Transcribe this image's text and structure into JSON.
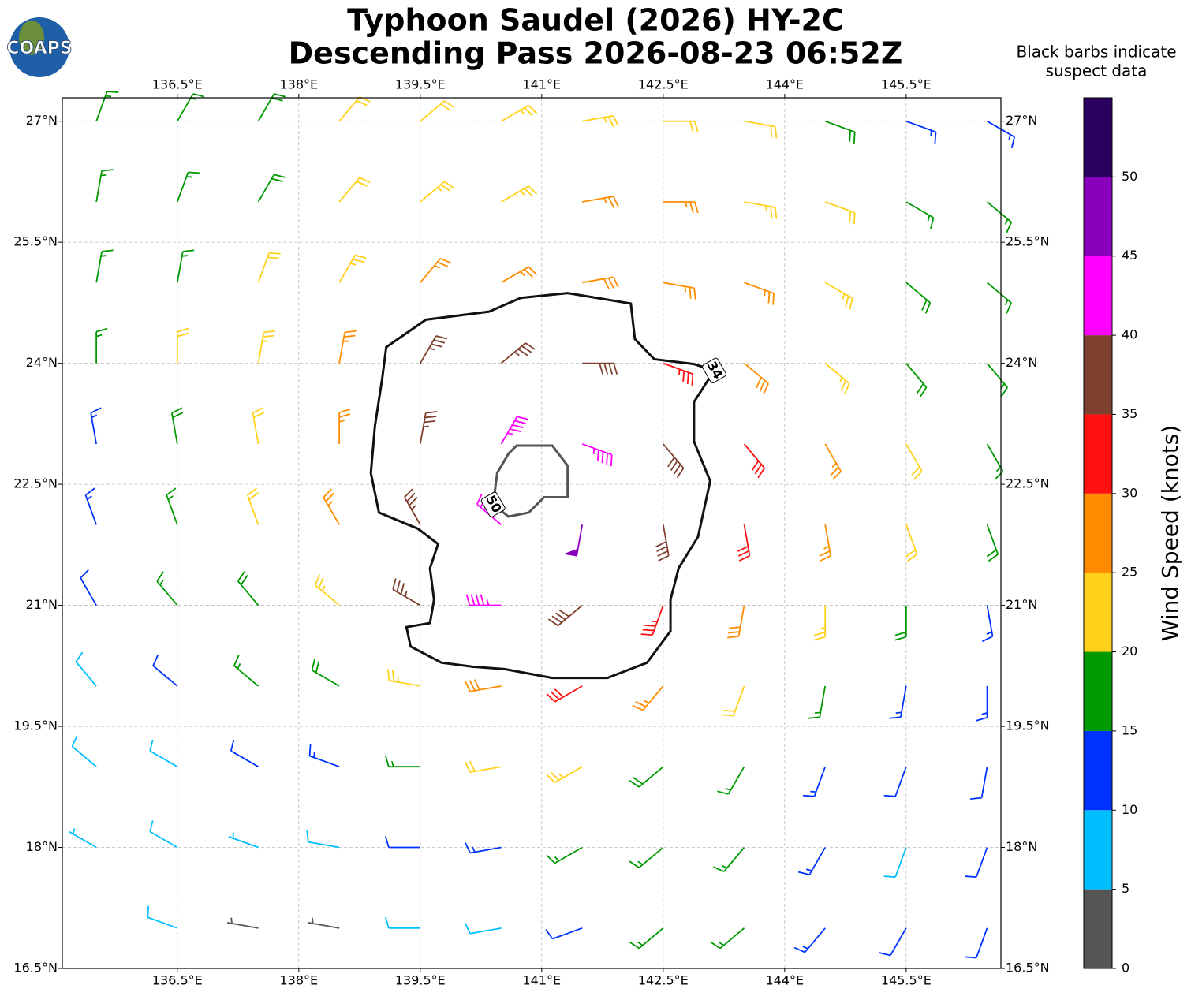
{
  "chart_data": {
    "type": "barbs",
    "title": [
      "Typhoon Saudel (2026) HY-2C",
      "Descending Pass 2026-08-23 06:52Z"
    ],
    "note": [
      "Black barbs indicate",
      "suspect data"
    ],
    "logo": "COAPS",
    "grid": true,
    "xlim": [
      135.08,
      146.67
    ],
    "ylim": [
      16.5,
      27.29
    ],
    "xticks": [
      {
        "value": 136.5,
        "label": "136.5°E"
      },
      {
        "value": 138,
        "label": "138°E"
      },
      {
        "value": 139.5,
        "label": "139.5°E"
      },
      {
        "value": 141,
        "label": "141°E"
      },
      {
        "value": 142.5,
        "label": "142.5°E"
      },
      {
        "value": 144,
        "label": "144°E"
      },
      {
        "value": 145.5,
        "label": "145.5°E"
      }
    ],
    "yticks": [
      {
        "value": 16.5,
        "label": "16.5°N"
      },
      {
        "value": 18,
        "label": "18°N"
      },
      {
        "value": 19.5,
        "label": "19.5°N"
      },
      {
        "value": 21,
        "label": "21°N"
      },
      {
        "value": 22.5,
        "label": "22.5°N"
      },
      {
        "value": 24,
        "label": "24°N"
      },
      {
        "value": 25.5,
        "label": "25.5°N"
      },
      {
        "value": 27,
        "label": "27°N"
      }
    ],
    "lon": [
      135.5,
      136.5,
      137.5,
      138.5,
      139.5,
      140.5,
      141.5,
      142.5,
      143.5,
      144.5,
      145.5,
      146.5
    ],
    "lat": [
      27,
      26,
      25,
      24,
      23,
      22,
      21,
      20,
      19,
      18,
      17
    ],
    "speed": [
      [
        17,
        17,
        18,
        21,
        22,
        23,
        24,
        22,
        21,
        18,
        14,
        13
      ],
      [
        16,
        17,
        19,
        21,
        23,
        24,
        25,
        26,
        23,
        21,
        17,
        16
      ],
      [
        15,
        17,
        21,
        23,
        26,
        27,
        28,
        27,
        26,
        23,
        19,
        17
      ],
      [
        16,
        21,
        23,
        26,
        36,
        37,
        38,
        33,
        28,
        24,
        19,
        17
      ],
      [
        14,
        18,
        22,
        27,
        37,
        43,
        44,
        38,
        31,
        26,
        21,
        17
      ],
      [
        13,
        16,
        21,
        27,
        36,
        42,
        48,
        38,
        32,
        26,
        22,
        18
      ],
      [
        12,
        15,
        19,
        24,
        36,
        43,
        38,
        33,
        28,
        23,
        18,
        14
      ],
      [
        9,
        12,
        16,
        19,
        24,
        28,
        31,
        27,
        22,
        17,
        14,
        13
      ],
      [
        8,
        9,
        12,
        14,
        17,
        22,
        23,
        19,
        16,
        13,
        10,
        12
      ],
      [
        7,
        8,
        7,
        9,
        12,
        14,
        16,
        17,
        16,
        13,
        9,
        12
      ],
      [
        null,
        8,
        4,
        3,
        8,
        9,
        12,
        15,
        16,
        13,
        10,
        12
      ]
    ],
    "direction": [
      [
        20,
        30,
        30,
        40,
        50,
        60,
        80,
        90,
        100,
        110,
        110,
        120
      ],
      [
        10,
        20,
        30,
        40,
        50,
        60,
        80,
        90,
        100,
        110,
        120,
        130
      ],
      [
        10,
        10,
        20,
        30,
        40,
        60,
        80,
        100,
        110,
        120,
        130,
        130
      ],
      [
        0,
        0,
        10,
        10,
        30,
        50,
        90,
        110,
        130,
        130,
        140,
        140
      ],
      [
        350,
        350,
        350,
        0,
        10,
        30,
        110,
        140,
        140,
        150,
        150,
        150
      ],
      [
        340,
        340,
        340,
        330,
        330,
        310,
        190,
        170,
        170,
        170,
        160,
        160
      ],
      [
        330,
        320,
        320,
        310,
        300,
        270,
        230,
        200,
        190,
        180,
        180,
        170
      ],
      [
        320,
        310,
        310,
        300,
        280,
        260,
        240,
        220,
        200,
        190,
        190,
        180
      ],
      [
        310,
        300,
        300,
        290,
        270,
        260,
        240,
        230,
        210,
        200,
        200,
        190
      ],
      [
        300,
        300,
        290,
        280,
        270,
        260,
        240,
        230,
        220,
        210,
        200,
        200
      ],
      [
        null,
        290,
        280,
        280,
        270,
        260,
        250,
        230,
        230,
        220,
        210,
        200
      ]
    ],
    "colorbar": {
      "label": "Wind Speed (knots)",
      "lim": [
        0,
        55
      ],
      "ticks": [
        0,
        5,
        10,
        15,
        20,
        25,
        30,
        35,
        40,
        45,
        50
      ],
      "colors": [
        "#555555",
        "#00bfff",
        "#0033ff",
        "#009900",
        "#ffd11a",
        "#ff8c00",
        "#ff1010",
        "#7f3f2f",
        "#ff00ff",
        "#8800bb",
        "#2a0060"
      ]
    },
    "contours": [
      {
        "level": 34,
        "color": "#111111",
        "lon": [
          139.08,
          139.57,
          140.35,
          140.74,
          141.32,
          142.1,
          142.15,
          142.39,
          142.88,
          143.13,
          142.88,
          142.88,
          143.08,
          142.93,
          142.69,
          142.59,
          142.59,
          142.3,
          141.81,
          141.13,
          140.54,
          140.15,
          139.76,
          139.38,
          139.33,
          139.62,
          139.67,
          139.62,
          139.72,
          139.47,
          138.99,
          138.89,
          138.94,
          139.03
        ],
        "lat": [
          24.2,
          24.54,
          24.64,
          24.81,
          24.87,
          24.74,
          24.3,
          24.05,
          23.99,
          23.91,
          23.52,
          23.03,
          22.54,
          21.85,
          21.46,
          21.07,
          20.68,
          20.29,
          20.1,
          20.1,
          20.21,
          20.24,
          20.29,
          20.49,
          20.73,
          20.78,
          21.07,
          21.46,
          21.76,
          21.95,
          22.15,
          22.64,
          23.22,
          23.81
        ]
      },
      {
        "level": 50,
        "color": "#555555",
        "lon": [
          140.69,
          141.13,
          141.32,
          141.32,
          141.03,
          140.84,
          140.59,
          140.4,
          140.45,
          140.59
        ],
        "lat": [
          22.98,
          22.98,
          22.73,
          22.34,
          22.34,
          22.15,
          22.1,
          22.25,
          22.64,
          22.88
        ]
      }
    ]
  }
}
